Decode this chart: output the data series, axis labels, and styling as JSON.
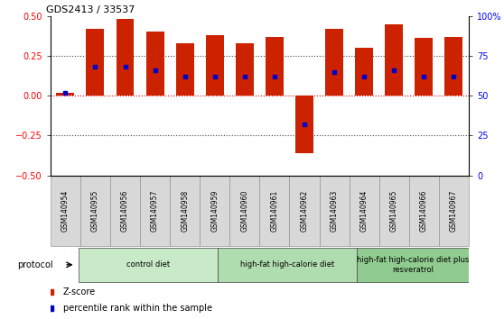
{
  "title": "GDS2413 / 33537",
  "samples": [
    "GSM140954",
    "GSM140955",
    "GSM140956",
    "GSM140957",
    "GSM140958",
    "GSM140959",
    "GSM140960",
    "GSM140961",
    "GSM140962",
    "GSM140963",
    "GSM140964",
    "GSM140965",
    "GSM140966",
    "GSM140967"
  ],
  "z_scores": [
    0.02,
    0.42,
    0.48,
    0.4,
    0.33,
    0.38,
    0.33,
    0.37,
    -0.36,
    0.42,
    0.3,
    0.45,
    0.36,
    0.37
  ],
  "percentile_ranks": [
    0.52,
    0.68,
    0.68,
    0.66,
    0.62,
    0.62,
    0.62,
    0.62,
    0.32,
    0.65,
    0.62,
    0.66,
    0.62,
    0.62
  ],
  "ylim": [
    -0.5,
    0.5
  ],
  "yticks_left": [
    -0.5,
    -0.25,
    0.0,
    0.25,
    0.5
  ],
  "yticks_right_labels": [
    "0",
    "25",
    "50",
    "75",
    "100%"
  ],
  "bar_color": "#cc2200",
  "dot_color": "#0000cc",
  "zero_line_color": "#dd0000",
  "groups": [
    {
      "label": "control diet",
      "start": 0,
      "end": 4,
      "color": "#c8eac8"
    },
    {
      "label": "high-fat high-calorie diet",
      "start": 5,
      "end": 9,
      "color": "#b0ddb0"
    },
    {
      "label": "high-fat high-calorie diet plus\nresveratrol",
      "start": 10,
      "end": 13,
      "color": "#90cc90"
    }
  ],
  "protocol_label": "protocol",
  "legend_zscore_color": "#cc2200",
  "legend_percentile_color": "#0000cc",
  "sample_box_color": "#d8d8d8",
  "sample_box_edge": "#888888"
}
